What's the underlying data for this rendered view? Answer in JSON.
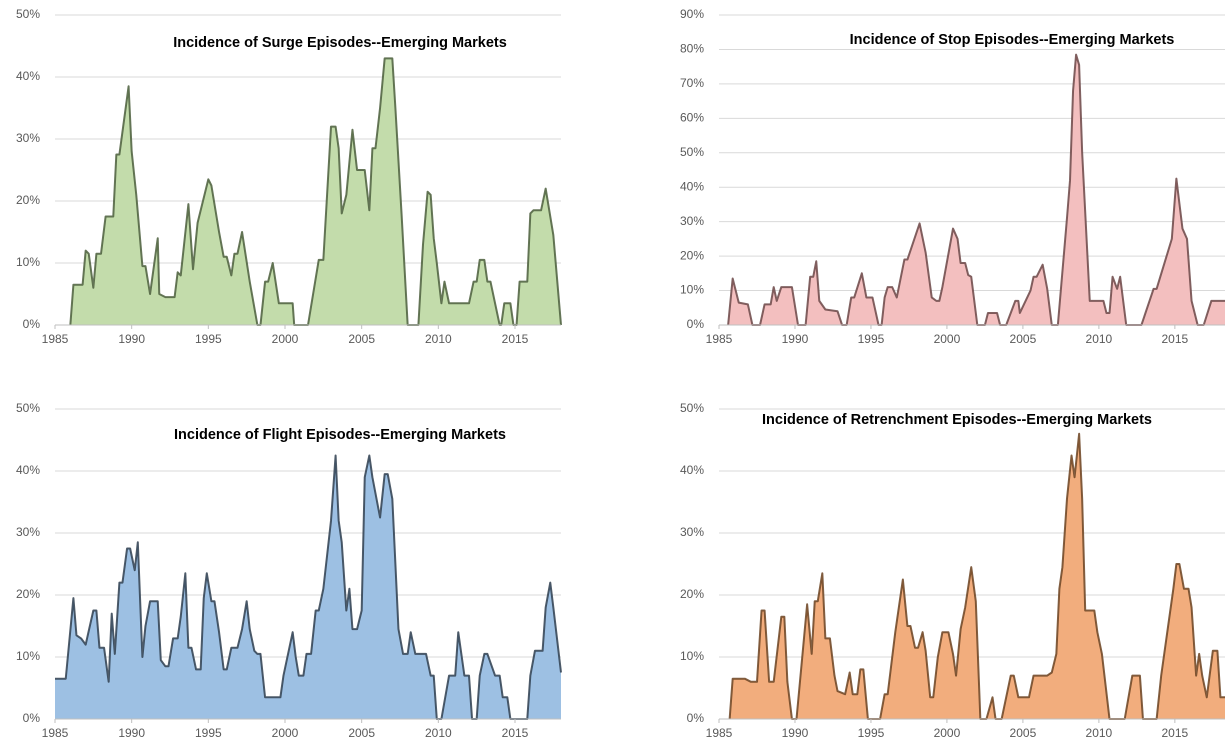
{
  "chart_data": [
    {
      "type": "area",
      "title": "Incidence of Surge Episodes--Emerging Markets",
      "color": "#c3dcab",
      "line_color": "#4b5e3c",
      "grid": true,
      "xlim": [
        1985,
        2018
      ],
      "xticks": [
        1985,
        1990,
        1995,
        2000,
        2005,
        2010,
        2015
      ],
      "ylim": [
        0,
        50
      ],
      "yticks": [
        {
          "value": 0,
          "label": "0%"
        },
        {
          "value": 10,
          "label": "10%"
        },
        {
          "value": 20,
          "label": "20%"
        },
        {
          "value": 30,
          "label": "30%"
        },
        {
          "value": 40,
          "label": "40%"
        },
        {
          "value": 50,
          "label": "50%"
        }
      ],
      "x": [
        1986.0,
        1986.2,
        1986.8,
        1987.0,
        1987.2,
        1987.5,
        1987.7,
        1988.0,
        1988.3,
        1988.8,
        1989.0,
        1989.2,
        1989.8,
        1990.0,
        1990.3,
        1990.7,
        1990.9,
        1991.2,
        1991.7,
        1991.8,
        1992.2,
        1992.8,
        1993.0,
        1993.2,
        1993.7,
        1994.0,
        1994.3,
        1995.0,
        1995.2,
        1995.7,
        1996.0,
        1996.2,
        1996.5,
        1996.7,
        1996.9,
        1997.2,
        1997.7,
        1998.2,
        1998.4,
        1998.7,
        1998.9,
        1999.2,
        1999.6,
        2000.5,
        2000.6,
        2001.5,
        2002.2,
        2002.5,
        2003.0,
        2003.3,
        2003.5,
        2003.7,
        2004.0,
        2004.4,
        2004.7,
        2005.2,
        2005.5,
        2005.7,
        2005.9,
        2006.2,
        2006.5,
        2007.0,
        2007.2,
        2007.6,
        2008.0,
        2008.7,
        2009.0,
        2009.3,
        2009.5,
        2009.7,
        2009.9,
        2010.2,
        2010.4,
        2010.7,
        2012.0,
        2012.3,
        2012.5,
        2012.7,
        2013.0,
        2013.2,
        2013.4,
        2013.7,
        2014.0,
        2014.1,
        2014.3,
        2014.7,
        2014.9,
        2015.1,
        2015.3,
        2015.8,
        2016.0,
        2016.2,
        2016.7,
        2017.0,
        2017.5,
        2018.0
      ],
      "values": [
        0,
        6.5,
        6.5,
        12,
        11.5,
        6,
        11.5,
        11.5,
        17.5,
        17.5,
        27.5,
        27.5,
        38.5,
        28,
        21,
        9.5,
        9.5,
        5,
        14,
        5,
        4.5,
        4.5,
        8.5,
        8,
        19.5,
        9,
        16.5,
        23.5,
        22.5,
        15,
        11,
        11,
        8,
        11.5,
        11.5,
        15,
        7,
        0,
        0,
        7,
        7,
        10,
        3.5,
        3.5,
        0,
        0,
        10.5,
        10.5,
        32,
        32,
        28.5,
        18,
        21,
        31.5,
        25,
        25,
        18.5,
        28.5,
        28.5,
        35,
        43,
        43,
        35,
        18,
        0,
        0,
        13,
        21.5,
        21,
        14,
        10,
        3.5,
        7,
        3.5,
        3.5,
        7,
        7,
        10.5,
        10.5,
        7,
        7,
        3.5,
        0,
        0,
        3.5,
        3.5,
        0,
        0,
        7,
        7,
        18,
        18.5,
        18.5,
        22,
        14.5,
        0
      ]
    },
    {
      "type": "area",
      "title": "Incidence of Stop Episodes--Emerging Markets",
      "color": "#f3bfbf",
      "line_color": "#6b4646",
      "grid": true,
      "xlim": [
        1985,
        2018.3
      ],
      "xticks": [
        1985,
        1990,
        1995,
        2000,
        2005,
        2010,
        2015
      ],
      "ylim": [
        0,
        90
      ],
      "yticks": [
        {
          "value": 0,
          "label": "0%"
        },
        {
          "value": 10,
          "label": "10%"
        },
        {
          "value": 20,
          "label": "20%"
        },
        {
          "value": 30,
          "label": "30%"
        },
        {
          "value": 40,
          "label": "40%"
        },
        {
          "value": 50,
          "label": "50%"
        },
        {
          "value": 60,
          "label": "60%"
        },
        {
          "value": 70,
          "label": "70%"
        },
        {
          "value": 80,
          "label": "80%"
        },
        {
          "value": 90,
          "label": "90%"
        }
      ],
      "x": [
        1985.6,
        1985.9,
        1986.3,
        1986.9,
        1987.2,
        1987.7,
        1988.0,
        1988.4,
        1988.6,
        1988.8,
        1989.1,
        1989.8,
        1990.2,
        1990.7,
        1991.0,
        1991.2,
        1991.4,
        1991.6,
        1992.0,
        1992.8,
        1993.1,
        1993.4,
        1993.7,
        1993.9,
        1994.4,
        1994.7,
        1995.1,
        1995.5,
        1995.7,
        1995.9,
        1996.1,
        1996.4,
        1996.7,
        1997.2,
        1997.4,
        1998.2,
        1998.6,
        1999.0,
        1999.3,
        1999.5,
        1999.7,
        2000.4,
        2000.7,
        2000.9,
        2001.2,
        2001.4,
        2001.6,
        2002.0,
        2002.5,
        2002.7,
        2003.3,
        2003.5,
        2003.9,
        2004.5,
        2004.7,
        2004.8,
        2005.5,
        2005.7,
        2005.9,
        2006.3,
        2006.6,
        2006.9,
        2007.3,
        2007.9,
        2008.1,
        2008.3,
        2008.5,
        2008.7,
        2008.9,
        2009.4,
        2010.3,
        2010.5,
        2010.7,
        2010.9,
        2011.2,
        2011.4,
        2011.5,
        2011.8,
        2012.8,
        2013.6,
        2013.8,
        2014.8,
        2015.1,
        2015.5,
        2015.8,
        2016.1,
        2016.5,
        2016.9,
        2017.4,
        2018.3
      ],
      "values": [
        0,
        13.5,
        6.5,
        6,
        0,
        0,
        6,
        6,
        11,
        7,
        11,
        11,
        0,
        0,
        14,
        14,
        18.5,
        7,
        4.5,
        4,
        0,
        0,
        8,
        8,
        15,
        8,
        8,
        0,
        0,
        8,
        11,
        11,
        8,
        19,
        19,
        29.5,
        21,
        8,
        7,
        7,
        11,
        28,
        25,
        18,
        18,
        14.5,
        14,
        0,
        0,
        3.5,
        3.5,
        0,
        0,
        7,
        7,
        3.5,
        10,
        14,
        14,
        17.5,
        10.5,
        0,
        0,
        31,
        42,
        68,
        78.5,
        75.5,
        50,
        7,
        7,
        3.5,
        3.5,
        14,
        10.5,
        14,
        10.5,
        0,
        0,
        10.5,
        10.5,
        25,
        42.5,
        28,
        25,
        7,
        0,
        0,
        7,
        7
      ]
    },
    {
      "type": "area",
      "title": "Incidence of Flight Episodes--Emerging Markets",
      "color": "#9dc0e3",
      "line_color": "#2f3e4f",
      "grid": true,
      "xlim": [
        1985,
        2018
      ],
      "xticks": [
        1985,
        1990,
        1995,
        2000,
        2005,
        2010,
        2015
      ],
      "ylim": [
        0,
        50
      ],
      "yticks": [
        {
          "value": 0,
          "label": "0%"
        },
        {
          "value": 10,
          "label": "10%"
        },
        {
          "value": 20,
          "label": "20%"
        },
        {
          "value": 30,
          "label": "30%"
        },
        {
          "value": 40,
          "label": "40%"
        },
        {
          "value": 50,
          "label": "50%"
        }
      ],
      "x": [
        1985.0,
        1985.7,
        1986.2,
        1986.4,
        1986.7,
        1987.0,
        1987.5,
        1987.7,
        1987.9,
        1988.2,
        1988.5,
        1988.7,
        1988.9,
        1989.2,
        1989.4,
        1989.7,
        1989.9,
        1990.2,
        1990.4,
        1990.7,
        1990.9,
        1991.2,
        1991.7,
        1991.9,
        1992.2,
        1992.4,
        1992.7,
        1993.0,
        1993.2,
        1993.5,
        1993.7,
        1993.9,
        1994.2,
        1994.5,
        1994.7,
        1994.9,
        1995.2,
        1995.4,
        1995.7,
        1996.0,
        1996.2,
        1996.5,
        1996.9,
        1997.2,
        1997.5,
        1997.7,
        1998.0,
        1998.2,
        1998.4,
        1998.7,
        1999.7,
        1999.9,
        2000.5,
        2000.7,
        2000.9,
        2001.2,
        2001.4,
        2001.7,
        2002.0,
        2002.2,
        2002.5,
        2003.0,
        2003.3,
        2003.5,
        2003.7,
        2004.0,
        2004.2,
        2004.4,
        2004.7,
        2005.0,
        2005.2,
        2005.5,
        2005.7,
        2006.2,
        2006.5,
        2006.7,
        2007.0,
        2007.4,
        2007.7,
        2008.0,
        2008.2,
        2008.5,
        2009.2,
        2009.5,
        2009.7,
        2009.9,
        2010.2,
        2010.7,
        2011.1,
        2011.3,
        2011.5,
        2011.7,
        2012.0,
        2012.2,
        2012.5,
        2012.7,
        2013.0,
        2013.2,
        2013.7,
        2014.0,
        2014.2,
        2014.5,
        2014.7,
        2015.8,
        2016.0,
        2016.3,
        2016.8,
        2017.0,
        2017.3,
        2017.5,
        2018.0
      ],
      "values": [
        6.5,
        6.5,
        19.5,
        13.5,
        13,
        12,
        17.5,
        17.5,
        11.5,
        11.5,
        6,
        17,
        10.5,
        22,
        22,
        27.5,
        27.5,
        24,
        28.5,
        10,
        15,
        19,
        19,
        9.5,
        8.5,
        8.5,
        13,
        13,
        16.5,
        23.5,
        11.5,
        11.5,
        8,
        8,
        19.5,
        23.5,
        19,
        19,
        14,
        8,
        8,
        11.5,
        11.5,
        14.5,
        19,
        14.5,
        11,
        10.5,
        10.5,
        3.5,
        3.5,
        7,
        14,
        10,
        7,
        7,
        10.5,
        10.5,
        17.5,
        17.5,
        21,
        32,
        42.5,
        32,
        28.5,
        17.5,
        21,
        14.5,
        14.5,
        17.5,
        39,
        42.5,
        39,
        32.5,
        39.5,
        39.5,
        35.5,
        14.5,
        10.5,
        10.5,
        14,
        10.5,
        10.5,
        7,
        7,
        0,
        0,
        7,
        7,
        14,
        10.5,
        7,
        7,
        0,
        0,
        7,
        10.5,
        10.5,
        7,
        7,
        3.5,
        3.5,
        0,
        0,
        7,
        11,
        11,
        18,
        22,
        18,
        7.5
      ]
    },
    {
      "type": "area",
      "title": "Incidence of Retrenchment Episodes--Emerging Markets",
      "color": "#f2ad7d",
      "line_color": "#6b4322",
      "grid": true,
      "xlim": [
        1985,
        2018.3
      ],
      "xticks": [
        1985,
        1990,
        1995,
        2000,
        2005,
        2010,
        2015
      ],
      "ylim": [
        0,
        50
      ],
      "yticks": [
        {
          "value": 0,
          "label": "0%"
        },
        {
          "value": 10,
          "label": "10%"
        },
        {
          "value": 20,
          "label": "20%"
        },
        {
          "value": 30,
          "label": "30%"
        },
        {
          "value": 40,
          "label": "40%"
        },
        {
          "value": 50,
          "label": "50%"
        }
      ],
      "x": [
        1985.7,
        1985.9,
        1986.7,
        1987.1,
        1987.5,
        1987.8,
        1988.0,
        1988.3,
        1988.6,
        1989.1,
        1989.3,
        1989.5,
        1989.8,
        1990.1,
        1990.8,
        1991.1,
        1991.3,
        1991.5,
        1991.8,
        1992.0,
        1992.3,
        1992.6,
        1992.8,
        1993.3,
        1993.6,
        1993.8,
        1994.1,
        1994.3,
        1994.5,
        1994.8,
        1995.6,
        1995.9,
        1996.1,
        1996.6,
        1997.1,
        1997.4,
        1997.6,
        1997.9,
        1998.1,
        1998.4,
        1998.6,
        1998.9,
        1999.1,
        1999.4,
        1999.7,
        2000.1,
        2000.4,
        2000.6,
        2000.9,
        2001.2,
        2001.6,
        2001.9,
        2002.2,
        2002.6,
        2003.0,
        2003.2,
        2003.6,
        2004.2,
        2004.4,
        2004.7,
        2005.4,
        2005.7,
        2006.6,
        2006.9,
        2007.2,
        2007.4,
        2007.6,
        2007.9,
        2008.2,
        2008.4,
        2008.7,
        2008.9,
        2009.1,
        2009.7,
        2009.9,
        2010.2,
        2010.7,
        2011.7,
        2012.2,
        2012.7,
        2012.9,
        2013.8,
        2014.1,
        2014.5,
        2014.9,
        2015.1,
        2015.3,
        2015.6,
        2015.9,
        2016.1,
        2016.4,
        2016.6,
        2016.8,
        2017.1,
        2017.5,
        2017.8,
        2018.0,
        2018.3
      ],
      "values": [
        0,
        6.5,
        6.5,
        6,
        6,
        17.5,
        17.5,
        6,
        6,
        16.5,
        16.5,
        6,
        0,
        0,
        18.5,
        10.5,
        19,
        19,
        23.5,
        13,
        13,
        7,
        4.5,
        4,
        7.5,
        4,
        4,
        8,
        8,
        0,
        0,
        4,
        4,
        14,
        22.5,
        15,
        15,
        11.5,
        11.5,
        14,
        11,
        3.5,
        3.5,
        10,
        14,
        14,
        10.5,
        7,
        14.5,
        18,
        24.5,
        19,
        0,
        0,
        3.5,
        0,
        0,
        7,
        7,
        3.5,
        3.5,
        7,
        7,
        7.5,
        10.5,
        21,
        24.5,
        35.5,
        42.5,
        39,
        46,
        35.5,
        17.5,
        17.5,
        14,
        10.5,
        0,
        0,
        7,
        7,
        0,
        0,
        7,
        14,
        21,
        25,
        25,
        21,
        21,
        18,
        7,
        10.5,
        7,
        3.5,
        11,
        11,
        3.5,
        3.5
      ]
    }
  ]
}
